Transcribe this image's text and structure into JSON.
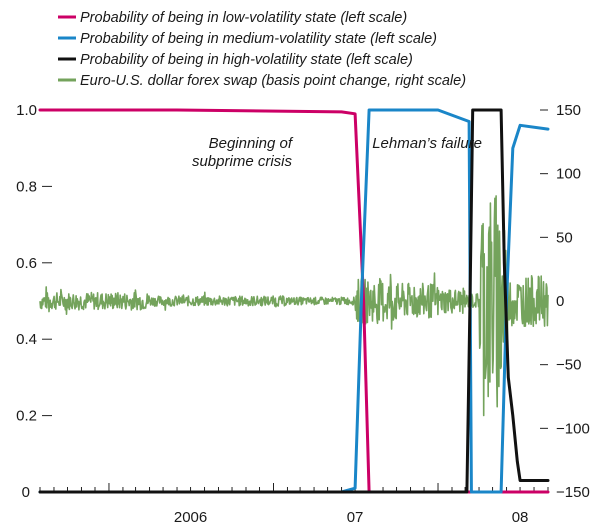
{
  "chart_data": {
    "type": "line",
    "title": "",
    "xlabel": "",
    "ylabel": "",
    "x_tick_labels": [
      "2006",
      "07",
      "08"
    ],
    "x_range": [
      "2005-08",
      "2008-09"
    ],
    "ylim_left": [
      0,
      1.0
    ],
    "ylim_right": [
      -150,
      150
    ],
    "y_left_ticks": [
      "0",
      "0.2",
      "0.4",
      "0.6",
      "0.8",
      "1.0"
    ],
    "y_right_ticks": [
      "-150",
      "-100",
      "-50",
      "0",
      "50",
      "100",
      "150"
    ],
    "grid": false,
    "legend_position": "top-left",
    "series": [
      {
        "name": "Probability of being in low-volatility state (left scale)",
        "axis": "left",
        "color": "#cc0066",
        "points": [
          [
            "2005-08",
            1.0
          ],
          [
            "2006-06",
            1.0
          ],
          [
            "2007-06",
            0.995
          ],
          [
            "2007-07",
            0.99
          ],
          [
            "2007-07-20",
            0.5
          ],
          [
            "2007-08",
            0.0
          ],
          [
            "2008-01",
            0.0
          ],
          [
            "2008-09",
            0.0
          ]
        ]
      },
      {
        "name": "Probability of being in medium-volatility state (left scale)",
        "axis": "left",
        "color": "#1a86c8",
        "points": [
          [
            "2005-08",
            0.0
          ],
          [
            "2007-06",
            0.0
          ],
          [
            "2007-07",
            0.01
          ],
          [
            "2007-07-15",
            0.5
          ],
          [
            "2007-08",
            1.0
          ],
          [
            "2008-01",
            1.0
          ],
          [
            "2008-03-10",
            0.97
          ],
          [
            "2008-03-15",
            0.0
          ],
          [
            "2008-05-20",
            0.0
          ],
          [
            "2008-06-01",
            0.5
          ],
          [
            "2008-06-15",
            0.9
          ],
          [
            "2008-07",
            0.96
          ],
          [
            "2008-09",
            0.95
          ]
        ]
      },
      {
        "name": "Probability of being in high-volatility state (left scale)",
        "axis": "left",
        "color": "#111111",
        "points": [
          [
            "2005-08",
            0.0
          ],
          [
            "2008-03-05",
            0.0
          ],
          [
            "2008-03-12",
            0.5
          ],
          [
            "2008-03-18",
            1.0
          ],
          [
            "2008-05-20",
            1.0
          ],
          [
            "2008-05-27",
            0.6
          ],
          [
            "2008-06-05",
            0.3
          ],
          [
            "2008-06-15",
            0.2
          ],
          [
            "2008-06-25",
            0.08
          ],
          [
            "2008-07",
            0.03
          ],
          [
            "2008-09",
            0.03
          ]
        ]
      },
      {
        "name": "Euro-U.S. dollar forex swap (basis point change, right scale)",
        "axis": "right",
        "color": "#74a35c",
        "description_points": [
          [
            "2005-08",
            0
          ],
          [
            "2007-07",
            0
          ],
          [
            "2007-08",
            15
          ],
          [
            "2008-03",
            0
          ],
          [
            "2008-04",
            130
          ],
          [
            "2008-05",
            -130
          ],
          [
            "2008-09",
            -10
          ]
        ],
        "amplitude_segments": [
          {
            "start": "2005-08",
            "end": "2006-04",
            "amp": 7
          },
          {
            "start": "2006-04",
            "end": "2007-02",
            "amp": 4
          },
          {
            "start": "2007-02",
            "end": "2007-07",
            "amp": 3
          },
          {
            "start": "2007-07",
            "end": "2007-10",
            "amp": 18
          },
          {
            "start": "2007-10",
            "end": "2008-01",
            "amp": 14
          },
          {
            "start": "2008-01",
            "end": "2008-03",
            "amp": 10
          },
          {
            "start": "2008-03",
            "end": "2008-04",
            "amp": 6
          },
          {
            "start": "2008-04",
            "end": "2008-06",
            "amp": 90
          },
          {
            "start": "2008-06",
            "end": "2008-09",
            "amp": 20
          }
        ]
      }
    ],
    "annotations": [
      {
        "lines": [
          "Beginning of",
          "subprime crisis"
        ],
        "at": "2007-07"
      },
      {
        "lines": [
          "Lehman’s failure"
        ],
        "at": "2008-03"
      }
    ]
  }
}
